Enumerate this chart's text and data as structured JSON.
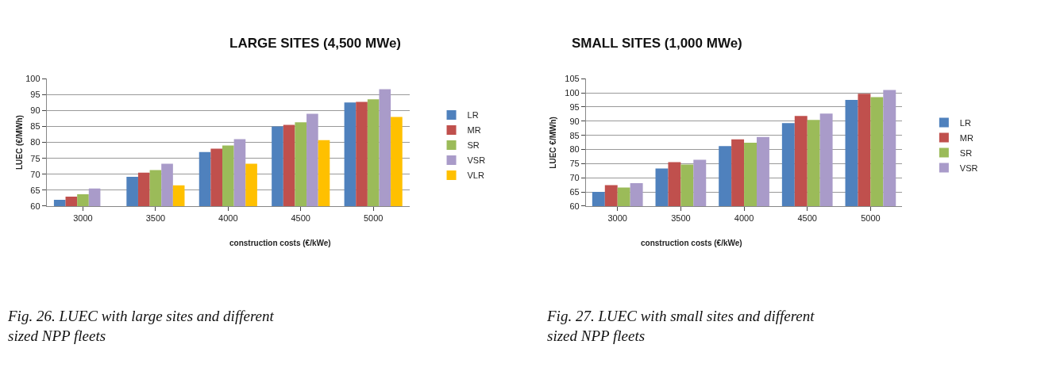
{
  "chart_data": [
    {
      "type": "bar",
      "title": "LARGE SITES (4,500 MWe)",
      "xlabel": "construction costs (€/kWe)",
      "ylabel": "LUEC (€/MWh)",
      "categories": [
        "3000",
        "3500",
        "4000",
        "4500",
        "5000"
      ],
      "series": [
        {
          "name": "LR",
          "color": "#4f81bd",
          "values": [
            62,
            69.2,
            77,
            85,
            92.5
          ]
        },
        {
          "name": "MR",
          "color": "#c0504d",
          "values": [
            63,
            70.5,
            78,
            85.5,
            92.7
          ]
        },
        {
          "name": "SR",
          "color": "#9bbb59",
          "values": [
            63.7,
            71.3,
            79,
            86.3,
            93.5
          ]
        },
        {
          "name": "VSR",
          "color": "#a99bc9",
          "values": [
            65.5,
            73.3,
            81,
            89,
            96.7
          ]
        },
        {
          "name": "VLR",
          "color": "#ffc000",
          "values": [
            null,
            66.5,
            73.3,
            80.7,
            88
          ]
        }
      ],
      "ylim": [
        60,
        100
      ],
      "yticks": [
        60,
        65,
        70,
        75,
        80,
        85,
        90,
        95,
        100
      ],
      "grid": "y",
      "legend": "right",
      "annotations": [
        "Fig. 26. LUEC with large sites and different sized NPP fleets"
      ]
    },
    {
      "type": "bar",
      "title": "SMALL SITES (1,000 MWe)",
      "xlabel": "construction costs (€/kWe)",
      "ylabel": "LUEC €/MWh)",
      "categories": [
        "3000",
        "3500",
        "4000",
        "4500",
        "5000"
      ],
      "series": [
        {
          "name": "LR",
          "color": "#4f81bd",
          "values": [
            65,
            73.3,
            81.2,
            89.3,
            97.5
          ]
        },
        {
          "name": "MR",
          "color": "#c0504d",
          "values": [
            67.4,
            75.5,
            83.6,
            91.8,
            99.7
          ]
        },
        {
          "name": "SR",
          "color": "#9bbb59",
          "values": [
            66.6,
            74.7,
            82.4,
            90.4,
            98.5
          ]
        },
        {
          "name": "VSR",
          "color": "#a99bc9",
          "values": [
            68.1,
            76.4,
            84.4,
            92.7,
            101
          ]
        }
      ],
      "ylim": [
        60,
        105
      ],
      "yticks": [
        60,
        65,
        70,
        75,
        80,
        85,
        90,
        95,
        100,
        105
      ],
      "grid": "y",
      "legend": "right",
      "annotations": [
        "Fig. 27. LUEC with small sites and different sized NPP fleets"
      ]
    }
  ]
}
